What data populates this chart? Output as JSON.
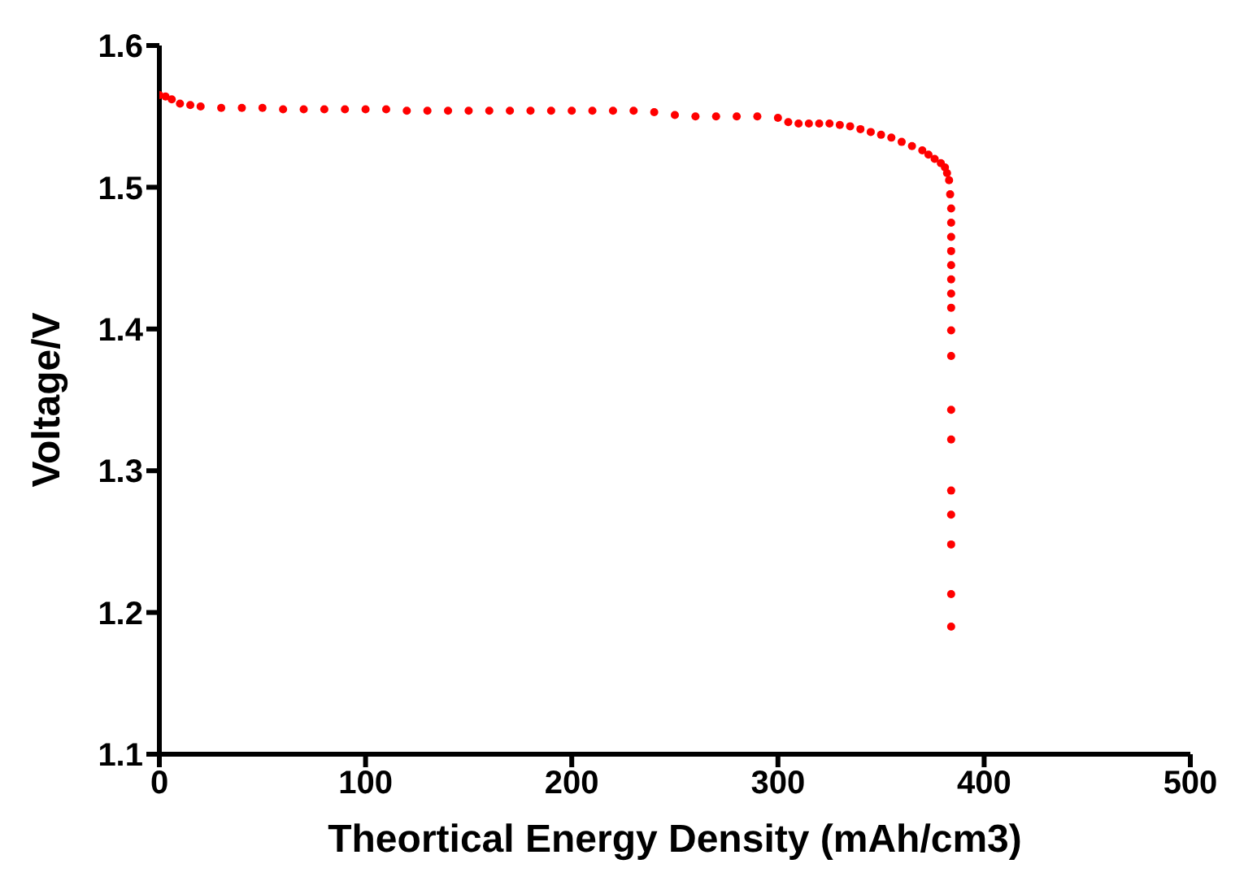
{
  "chart_data": {
    "type": "scatter",
    "xlabel": "Theortical Energy Density (mAh/cm3)",
    "ylabel": "Voltage/V",
    "xlim": [
      0,
      500
    ],
    "xticks": [
      0,
      100,
      200,
      300,
      400,
      500
    ],
    "ylim": [
      1.1,
      1.6
    ],
    "yticks": [
      1.1,
      1.2,
      1.3,
      1.4,
      1.5,
      1.6
    ],
    "marker": "circle",
    "grid": false,
    "series": [
      {
        "color": "#ff0000",
        "x": [
          0,
          3,
          6,
          10,
          15,
          20,
          30,
          40,
          50,
          60,
          70,
          80,
          90,
          100,
          110,
          120,
          130,
          140,
          150,
          160,
          170,
          180,
          190,
          200,
          210,
          220,
          230,
          240,
          250,
          260,
          270,
          280,
          290,
          300,
          305,
          310,
          315,
          320,
          325,
          330,
          335,
          340,
          345,
          350,
          355,
          360,
          365,
          370,
          373,
          376,
          379,
          381,
          382,
          383,
          383.5,
          384,
          384,
          384,
          384,
          384,
          384,
          384,
          384,
          384,
          384,
          384,
          384,
          384,
          384,
          384,
          384,
          384
        ],
        "values": [
          1.565,
          1.564,
          1.562,
          1.559,
          1.558,
          1.557,
          1.556,
          1.556,
          1.556,
          1.555,
          1.555,
          1.555,
          1.555,
          1.555,
          1.555,
          1.554,
          1.554,
          1.554,
          1.554,
          1.554,
          1.554,
          1.554,
          1.554,
          1.554,
          1.554,
          1.554,
          1.554,
          1.553,
          1.551,
          1.55,
          1.55,
          1.55,
          1.55,
          1.549,
          1.546,
          1.545,
          1.545,
          1.545,
          1.545,
          1.544,
          1.543,
          1.541,
          1.539,
          1.537,
          1.535,
          1.532,
          1.529,
          1.526,
          1.523,
          1.52,
          1.517,
          1.514,
          1.51,
          1.505,
          1.495,
          1.485,
          1.475,
          1.465,
          1.455,
          1.445,
          1.435,
          1.425,
          1.415,
          1.399,
          1.381,
          1.343,
          1.322,
          1.286,
          1.269,
          1.248,
          1.213,
          1.19
        ]
      }
    ]
  }
}
